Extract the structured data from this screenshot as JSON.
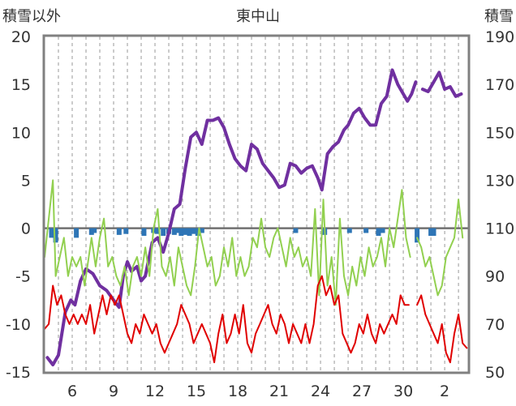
{
  "chart_data": {
    "type": "line",
    "title": "東中山",
    "left_axis_label": "積雪以外",
    "right_axis_label": "積雪",
    "y_left": {
      "min": -15,
      "max": 20,
      "ticks": [
        "20",
        "15",
        "10",
        "5",
        "0",
        "-5",
        "-10",
        "-15"
      ]
    },
    "y_right": {
      "min": 50,
      "max": 190,
      "ticks": [
        "190",
        "170",
        "150",
        "130",
        "110",
        "90",
        "70",
        "50"
      ]
    },
    "x_ticks": [
      "6",
      "9",
      "12",
      "15",
      "18",
      "21",
      "24",
      "27",
      "30",
      "2"
    ],
    "grid": {
      "vertical_dashed": true,
      "zero_line": true
    },
    "colors": {
      "snow_depth": "#7030a0",
      "temperature_max": "#92d050",
      "temperature_min": "#e00000",
      "precipitation": "#2e75b6",
      "frame": "#808080"
    },
    "series": [
      {
        "key": "snow_depth",
        "axis": "right",
        "points": [
          [
            4.2,
            56
          ],
          [
            4.6,
            53
          ],
          [
            5.0,
            57
          ],
          [
            5.5,
            75
          ],
          [
            5.9,
            80
          ],
          [
            6.2,
            78
          ],
          [
            6.6,
            88
          ],
          [
            7.0,
            93
          ],
          [
            7.5,
            91
          ],
          [
            8.0,
            86
          ],
          [
            8.5,
            84
          ],
          [
            9.0,
            80
          ],
          [
            9.4,
            77
          ],
          [
            9.7,
            90
          ],
          [
            10.0,
            96
          ],
          [
            10.3,
            92
          ],
          [
            10.7,
            94
          ],
          [
            11.0,
            88
          ],
          [
            11.3,
            90
          ],
          [
            11.8,
            104
          ],
          [
            12.2,
            106
          ],
          [
            12.6,
            100
          ],
          [
            13.0,
            108
          ],
          [
            13.4,
            118
          ],
          [
            13.8,
            120
          ],
          [
            14.2,
            135
          ],
          [
            14.6,
            148
          ],
          [
            15.0,
            150
          ],
          [
            15.4,
            145
          ],
          [
            15.8,
            155
          ],
          [
            16.2,
            155
          ],
          [
            16.6,
            156
          ],
          [
            17.0,
            152
          ],
          [
            17.4,
            145
          ],
          [
            17.8,
            139
          ],
          [
            18.2,
            136
          ],
          [
            18.6,
            134
          ],
          [
            19.0,
            145
          ],
          [
            19.4,
            143
          ],
          [
            19.8,
            137
          ],
          [
            20.2,
            134
          ],
          [
            20.6,
            131
          ],
          [
            21.0,
            127
          ],
          [
            21.4,
            128
          ],
          [
            21.8,
            137
          ],
          [
            22.2,
            136
          ],
          [
            22.6,
            133
          ],
          [
            23.0,
            135
          ],
          [
            23.4,
            136
          ],
          [
            23.8,
            131
          ],
          [
            24.1,
            126
          ],
          [
            24.5,
            141
          ],
          [
            24.9,
            144
          ],
          [
            25.3,
            146
          ],
          [
            25.7,
            151
          ],
          [
            26.0,
            153
          ],
          [
            26.4,
            158
          ],
          [
            26.8,
            160
          ],
          [
            27.2,
            156
          ],
          [
            27.6,
            153
          ],
          [
            28.0,
            153
          ],
          [
            28.4,
            162
          ],
          [
            28.8,
            165
          ],
          [
            29.2,
            176
          ],
          [
            29.6,
            170
          ],
          [
            30.0,
            166
          ],
          [
            30.3,
            163
          ],
          [
            30.6,
            166
          ],
          [
            30.9,
            171
          ],
          [
            null,
            null
          ],
          [
            31.4,
            168
          ],
          [
            31.8,
            167
          ],
          [
            32.2,
            171
          ],
          [
            32.6,
            175
          ],
          [
            33.0,
            168
          ],
          [
            33.4,
            169
          ],
          [
            33.8,
            165
          ],
          [
            34.2,
            166
          ]
        ]
      },
      {
        "key": "temperature_max",
        "axis": "left",
        "points": [
          [
            4.0,
            -3
          ],
          [
            4.3,
            1
          ],
          [
            4.6,
            5
          ],
          [
            4.8,
            -5
          ],
          [
            5.1,
            -3
          ],
          [
            5.4,
            -1
          ],
          [
            5.7,
            -5
          ],
          [
            6.0,
            -3
          ],
          [
            6.3,
            -4
          ],
          [
            6.6,
            -3
          ],
          [
            6.9,
            -6
          ],
          [
            7.2,
            -3
          ],
          [
            7.4,
            -1
          ],
          [
            7.7,
            -4
          ],
          [
            8.0,
            -1
          ],
          [
            8.3,
            1
          ],
          [
            8.6,
            -4
          ],
          [
            8.9,
            -3
          ],
          [
            9.2,
            -5
          ],
          [
            9.5,
            -6
          ],
          [
            9.8,
            -4
          ],
          [
            10.1,
            -7
          ],
          [
            10.4,
            -4
          ],
          [
            10.7,
            -3
          ],
          [
            11.0,
            -5
          ],
          [
            11.3,
            -2
          ],
          [
            11.6,
            -5
          ],
          [
            11.9,
            0
          ],
          [
            12.2,
            2
          ],
          [
            12.5,
            -4
          ],
          [
            12.8,
            -5
          ],
          [
            13.1,
            -3
          ],
          [
            13.4,
            -6
          ],
          [
            13.7,
            -2
          ],
          [
            14.0,
            -4
          ],
          [
            14.3,
            -6
          ],
          [
            14.6,
            -7
          ],
          [
            14.9,
            -4
          ],
          [
            15.2,
            0
          ],
          [
            15.5,
            -2
          ],
          [
            15.8,
            -4
          ],
          [
            16.1,
            -3
          ],
          [
            16.4,
            -6
          ],
          [
            16.7,
            -5
          ],
          [
            17.0,
            -2
          ],
          [
            17.3,
            -4
          ],
          [
            17.6,
            -1
          ],
          [
            17.9,
            -5
          ],
          [
            18.2,
            -3
          ],
          [
            18.5,
            -5
          ],
          [
            18.8,
            -4
          ],
          [
            19.1,
            -1
          ],
          [
            19.4,
            -2
          ],
          [
            19.7,
            1
          ],
          [
            20.0,
            -2
          ],
          [
            20.3,
            -3
          ],
          [
            20.6,
            -1
          ],
          [
            20.9,
            0
          ],
          [
            21.2,
            -2
          ],
          [
            21.5,
            -4
          ],
          [
            21.8,
            -1
          ],
          [
            22.1,
            -3
          ],
          [
            22.4,
            -2
          ],
          [
            22.7,
            -4
          ],
          [
            23.0,
            -3
          ],
          [
            23.3,
            -5
          ],
          [
            23.6,
            2
          ],
          [
            23.9,
            -7
          ],
          [
            24.2,
            3
          ],
          [
            24.5,
            -6
          ],
          [
            24.8,
            -3
          ],
          [
            25.1,
            -8
          ],
          [
            25.4,
            1
          ],
          [
            25.7,
            -5
          ],
          [
            26.0,
            -7
          ],
          [
            26.3,
            -4
          ],
          [
            26.6,
            -6
          ],
          [
            26.9,
            -3
          ],
          [
            27.2,
            -5
          ],
          [
            27.5,
            -2
          ],
          [
            27.8,
            -4
          ],
          [
            28.1,
            -3
          ],
          [
            28.4,
            -1
          ],
          [
            28.7,
            -4
          ],
          [
            29.0,
            0
          ],
          [
            29.3,
            -2
          ],
          [
            29.6,
            1
          ],
          [
            29.9,
            4
          ],
          [
            30.2,
            -1
          ],
          [
            30.5,
            -3
          ],
          [
            null,
            null
          ],
          [
            31.0,
            -1
          ],
          [
            31.3,
            -2
          ],
          [
            31.6,
            -4
          ],
          [
            31.9,
            -3
          ],
          [
            32.2,
            -5
          ],
          [
            32.5,
            -7
          ],
          [
            32.8,
            -6
          ],
          [
            33.1,
            -3
          ],
          [
            33.4,
            -2
          ],
          [
            33.7,
            -1
          ],
          [
            34.0,
            3
          ],
          [
            34.3,
            -1
          ]
        ]
      },
      {
        "key": "temperature_min",
        "axis": "left",
        "points": [
          [
            4.0,
            -10.5
          ],
          [
            4.3,
            -10
          ],
          [
            4.6,
            -6
          ],
          [
            4.9,
            -8
          ],
          [
            5.2,
            -7
          ],
          [
            5.5,
            -9
          ],
          [
            5.8,
            -10
          ],
          [
            6.1,
            -9
          ],
          [
            6.4,
            -10
          ],
          [
            6.7,
            -9
          ],
          [
            7.0,
            -10
          ],
          [
            7.3,
            -8
          ],
          [
            7.6,
            -11
          ],
          [
            7.9,
            -9
          ],
          [
            8.2,
            -7
          ],
          [
            8.5,
            -9
          ],
          [
            8.8,
            -7
          ],
          [
            9.1,
            -8
          ],
          [
            9.4,
            -7
          ],
          [
            9.7,
            -9
          ],
          [
            10.0,
            -11
          ],
          [
            10.3,
            -12
          ],
          [
            10.6,
            -10
          ],
          [
            10.9,
            -11
          ],
          [
            11.2,
            -9
          ],
          [
            11.5,
            -10
          ],
          [
            11.8,
            -11
          ],
          [
            12.1,
            -10
          ],
          [
            12.4,
            -12
          ],
          [
            12.7,
            -13
          ],
          [
            13.0,
            -12
          ],
          [
            13.3,
            -11
          ],
          [
            13.6,
            -10
          ],
          [
            13.9,
            -8
          ],
          [
            14.2,
            -9
          ],
          [
            14.5,
            -10
          ],
          [
            14.8,
            -12
          ],
          [
            15.1,
            -11
          ],
          [
            15.4,
            -10
          ],
          [
            15.7,
            -11
          ],
          [
            16.0,
            -12
          ],
          [
            16.3,
            -14
          ],
          [
            16.6,
            -11
          ],
          [
            16.9,
            -9
          ],
          [
            17.2,
            -12
          ],
          [
            17.5,
            -11
          ],
          [
            17.8,
            -9
          ],
          [
            18.1,
            -11
          ],
          [
            18.4,
            -8
          ],
          [
            18.7,
            -12
          ],
          [
            19.0,
            -13
          ],
          [
            19.3,
            -11
          ],
          [
            19.6,
            -10
          ],
          [
            19.9,
            -9
          ],
          [
            20.2,
            -8
          ],
          [
            20.5,
            -10
          ],
          [
            20.8,
            -11
          ],
          [
            21.1,
            -9
          ],
          [
            21.4,
            -10
          ],
          [
            21.7,
            -12
          ],
          [
            22.0,
            -10
          ],
          [
            22.3,
            -11
          ],
          [
            22.6,
            -12
          ],
          [
            22.9,
            -10
          ],
          [
            23.2,
            -12
          ],
          [
            23.5,
            -10
          ],
          [
            23.8,
            -6
          ],
          [
            24.1,
            -5
          ],
          [
            24.4,
            -7
          ],
          [
            24.7,
            -6
          ],
          [
            25.0,
            -8
          ],
          [
            25.3,
            -7
          ],
          [
            25.6,
            -11
          ],
          [
            25.9,
            -12
          ],
          [
            26.2,
            -13
          ],
          [
            26.5,
            -12
          ],
          [
            26.8,
            -10
          ],
          [
            27.1,
            -11
          ],
          [
            27.4,
            -9
          ],
          [
            27.7,
            -11
          ],
          [
            28.0,
            -12
          ],
          [
            28.3,
            -10
          ],
          [
            28.6,
            -11
          ],
          [
            28.9,
            -10
          ],
          [
            29.2,
            -9
          ],
          [
            29.5,
            -10
          ],
          [
            29.8,
            -7
          ],
          [
            30.1,
            -8
          ],
          [
            30.4,
            -8
          ],
          [
            null,
            null
          ],
          [
            31.0,
            -8
          ],
          [
            31.3,
            -7
          ],
          [
            31.6,
            -9
          ],
          [
            31.9,
            -10
          ],
          [
            32.2,
            -11
          ],
          [
            32.5,
            -12
          ],
          [
            32.8,
            -10
          ],
          [
            33.1,
            -13
          ],
          [
            33.4,
            -14
          ],
          [
            33.7,
            -11
          ],
          [
            34.0,
            -9
          ],
          [
            34.3,
            -12
          ],
          [
            34.6,
            -12.5
          ]
        ]
      },
      {
        "key": "precipitation",
        "axis": "left",
        "bars": [
          [
            4.5,
            1
          ],
          [
            4.8,
            1.5
          ],
          [
            6.3,
            1
          ],
          [
            7.4,
            0.7
          ],
          [
            7.6,
            0.5
          ],
          [
            9.4,
            0.7
          ],
          [
            9.9,
            0.6
          ],
          [
            11.2,
            0.8
          ],
          [
            11.9,
            0.5
          ],
          [
            12.2,
            0.6
          ],
          [
            12.6,
            0.8
          ],
          [
            13.0,
            0.6
          ],
          [
            13.4,
            0.7
          ],
          [
            13.6,
            0.5
          ],
          [
            13.9,
            0.8
          ],
          [
            14.2,
            0.7
          ],
          [
            14.5,
            0.8
          ],
          [
            14.8,
            0.6
          ],
          [
            15.1,
            0.8
          ],
          [
            15.4,
            0.5
          ],
          [
            22.2,
            0.5
          ],
          [
            24.3,
            0.7
          ],
          [
            26.1,
            0.5
          ],
          [
            27.3,
            0.5
          ],
          [
            28.2,
            0.8
          ],
          [
            28.5,
            0.5
          ],
          [
            31.0,
            1.5
          ],
          [
            32.0,
            0.8
          ],
          [
            32.2,
            0.8
          ]
        ]
      }
    ]
  }
}
